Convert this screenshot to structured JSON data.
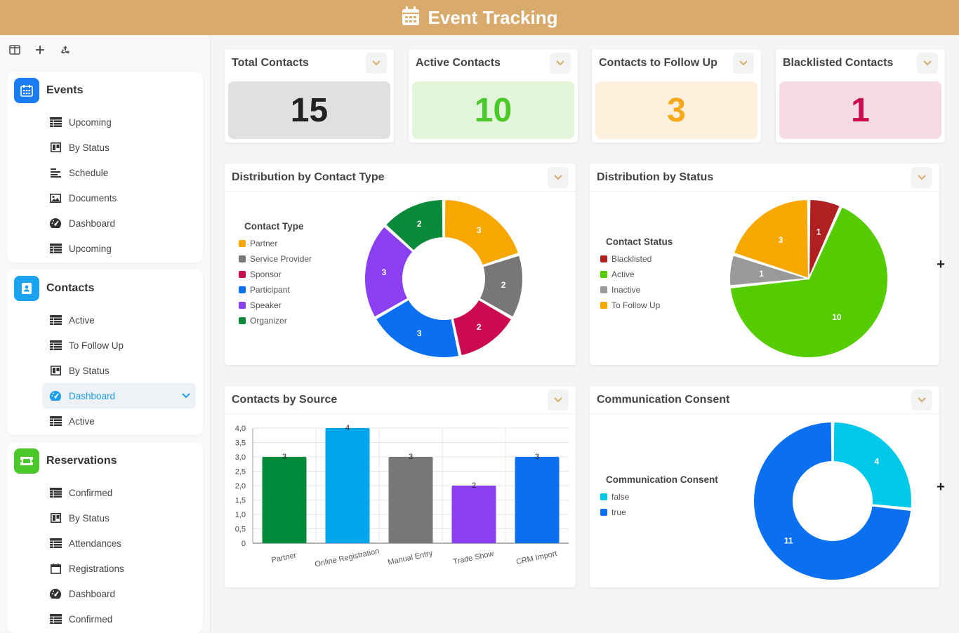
{
  "app": {
    "title": "Event Tracking"
  },
  "colors": {
    "header": "#d8aa6b"
  },
  "toolbar": {
    "icons": [
      "layout-icon",
      "add-icon",
      "recycle-icon"
    ]
  },
  "sidebar": {
    "events": {
      "title": "Events",
      "color": "#1a7cf0",
      "items": [
        {
          "label": "Upcoming",
          "icon": "table-icon"
        },
        {
          "label": "By Status",
          "icon": "kanban-icon"
        },
        {
          "label": "Schedule",
          "icon": "timeline-icon"
        },
        {
          "label": "Documents",
          "icon": "image-icon"
        },
        {
          "label": "Dashboard",
          "icon": "gauge-icon"
        },
        {
          "label": "Upcoming",
          "icon": "table-icon"
        }
      ]
    },
    "contacts": {
      "title": "Contacts",
      "color": "#1aa3f0",
      "items": [
        {
          "label": "Active",
          "icon": "table-icon"
        },
        {
          "label": "To Follow Up",
          "icon": "table-icon"
        },
        {
          "label": "By Status",
          "icon": "kanban-icon"
        },
        {
          "label": "Dashboard",
          "icon": "gauge-icon",
          "active": true
        },
        {
          "label": "Active",
          "icon": "table-icon"
        }
      ]
    },
    "reservations": {
      "title": "Reservations",
      "color": "#4cc92a",
      "items": [
        {
          "label": "Confirmed",
          "icon": "table-icon"
        },
        {
          "label": "By Status",
          "icon": "kanban-icon"
        },
        {
          "label": "Attendances",
          "icon": "table-icon"
        },
        {
          "label": "Registrations",
          "icon": "calendar-icon"
        },
        {
          "label": "Dashboard",
          "icon": "gauge-icon"
        },
        {
          "label": "Confirmed",
          "icon": "table-icon"
        }
      ]
    }
  },
  "kpis": [
    {
      "title": "Total Contacts",
      "value": "15",
      "bg": "#e0e0e0",
      "color": "#222222"
    },
    {
      "title": "Active Contacts",
      "value": "10",
      "bg": "#e2f5da",
      "color": "#4cc92a"
    },
    {
      "title": "Contacts to Follow Up",
      "value": "3",
      "bg": "#fdf0dc",
      "color": "#f7a81b"
    },
    {
      "title": "Blacklisted Contacts",
      "value": "1",
      "bg": "#f5dbe4",
      "color": "#cc0a4f"
    }
  ],
  "charts": {
    "contact_type": {
      "title": "Distribution by Contact Type",
      "legend_title": "Contact Type"
    },
    "status": {
      "title": "Distribution by Status",
      "legend_title": "Contact Status"
    },
    "source": {
      "title": "Contacts by Source"
    },
    "consent": {
      "title": "Communication Consent",
      "legend_title": "Communication Consent"
    }
  },
  "chart_data": [
    {
      "id": "contact_type",
      "type": "pie",
      "donut": true,
      "slices": [
        {
          "label": "Partner",
          "value": 3,
          "color": "#f7a800"
        },
        {
          "label": "Service Provider",
          "value": 2,
          "color": "#777777"
        },
        {
          "label": "Sponsor",
          "value": 2,
          "color": "#cc0a4f"
        },
        {
          "label": "Participant",
          "value": 3,
          "color": "#0a6ff0"
        },
        {
          "label": "Speaker",
          "value": 3,
          "color": "#8a3ff0"
        },
        {
          "label": "Organizer",
          "value": 2,
          "color": "#0a8a3a"
        }
      ]
    },
    {
      "id": "status",
      "type": "pie",
      "donut": false,
      "slices": [
        {
          "label": "Blacklisted",
          "value": 1,
          "color": "#b02020"
        },
        {
          "label": "Active",
          "value": 10,
          "color": "#55cc00"
        },
        {
          "label": "Inactive",
          "value": 1,
          "color": "#999999"
        },
        {
          "label": "To Follow Up",
          "value": 3,
          "color": "#f7a800"
        }
      ]
    },
    {
      "id": "source",
      "type": "bar",
      "categories": [
        "Partner",
        "Online Registration",
        "Manual Entry",
        "Trade Show",
        "CRM Import"
      ],
      "values": [
        3,
        4,
        3,
        2,
        3
      ],
      "colors": [
        "#008a3a",
        "#00a6ec",
        "#777777",
        "#8a3ff0",
        "#0a6ff0"
      ],
      "ylim": [
        0,
        4
      ],
      "yticks": [
        "0",
        "0,5",
        "1,0",
        "1,5",
        "2,0",
        "2,5",
        "3,0",
        "3,5",
        "4,0"
      ],
      "grid": true
    },
    {
      "id": "consent",
      "type": "pie",
      "donut": true,
      "slices": [
        {
          "label": "false",
          "value": 4,
          "color": "#00c8e8"
        },
        {
          "label": "true",
          "value": 11,
          "color": "#0a6ff0"
        }
      ]
    }
  ]
}
